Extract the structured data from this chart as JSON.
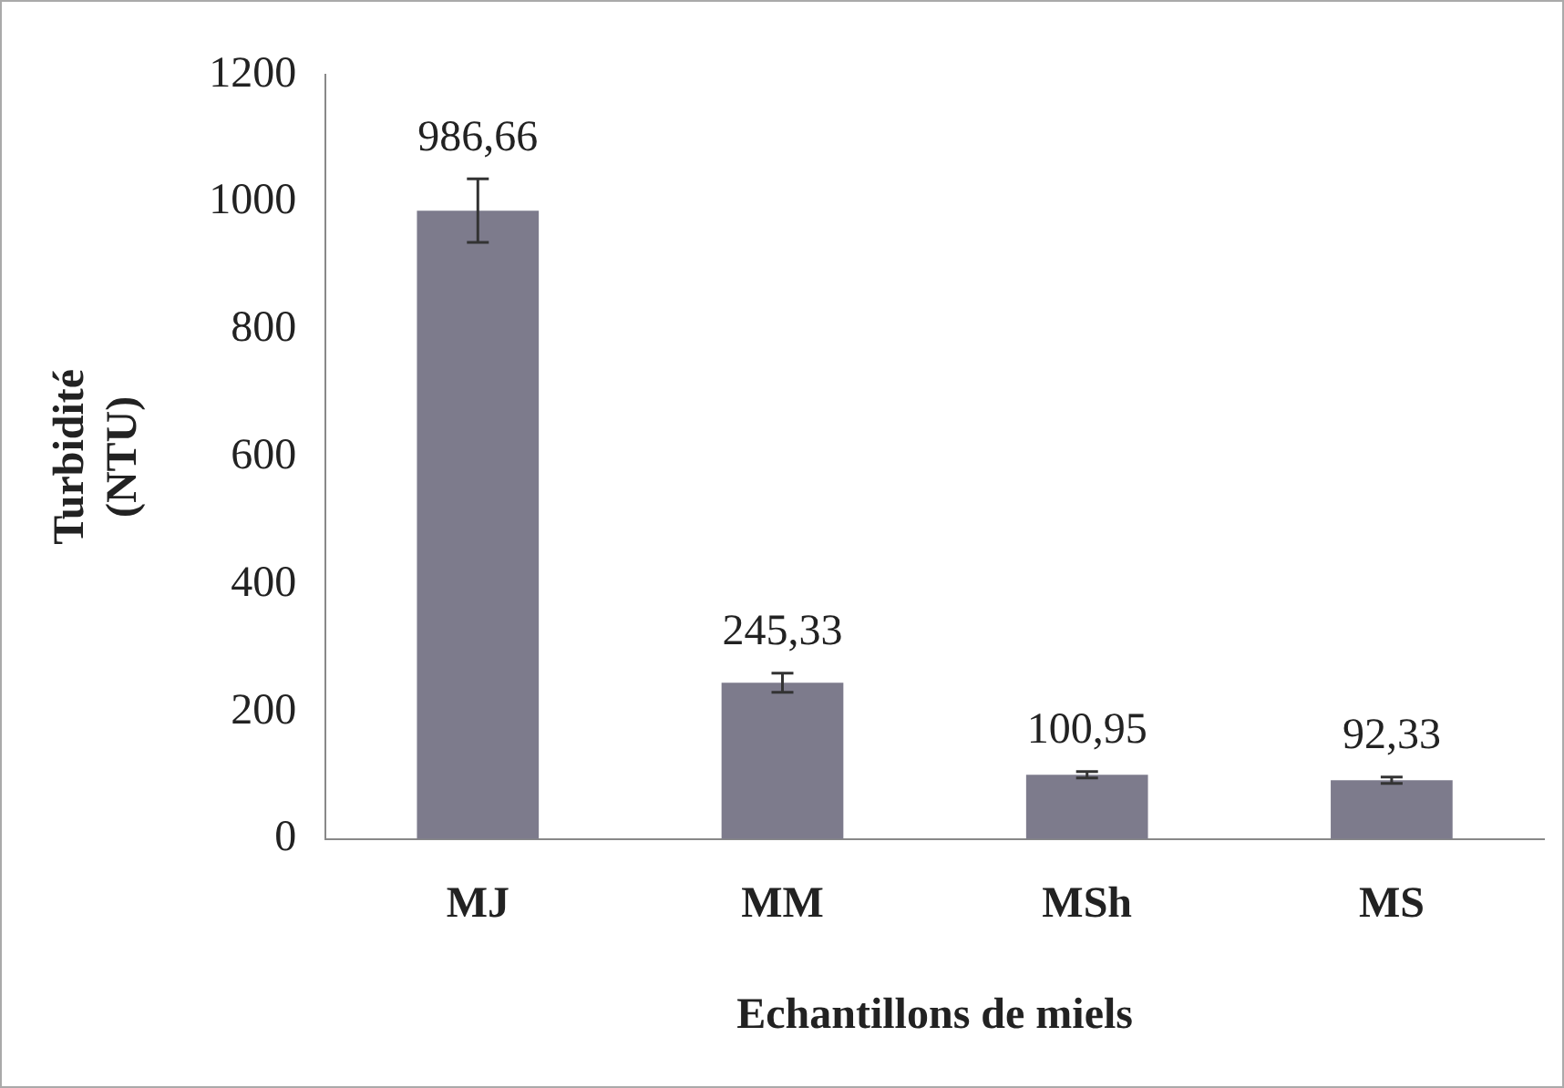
{
  "chart_data": {
    "type": "bar",
    "xlabel": "Echantillons de miels",
    "ylabel": "Turbidité (NTU)",
    "categories": [
      "MJ",
      "MM",
      "MSh",
      "MS"
    ],
    "values": [
      986.66,
      245.33,
      100.95,
      92.33
    ],
    "value_labels": [
      "986,66",
      "245,33",
      "100,95",
      "92,33"
    ],
    "errors": [
      50,
      15,
      5,
      5
    ],
    "color": "#7d7b8c",
    "ylim": [
      0,
      1200
    ],
    "yticks": [
      0,
      200,
      400,
      600,
      800,
      1000,
      1200
    ],
    "grid": false,
    "legend": false
  }
}
